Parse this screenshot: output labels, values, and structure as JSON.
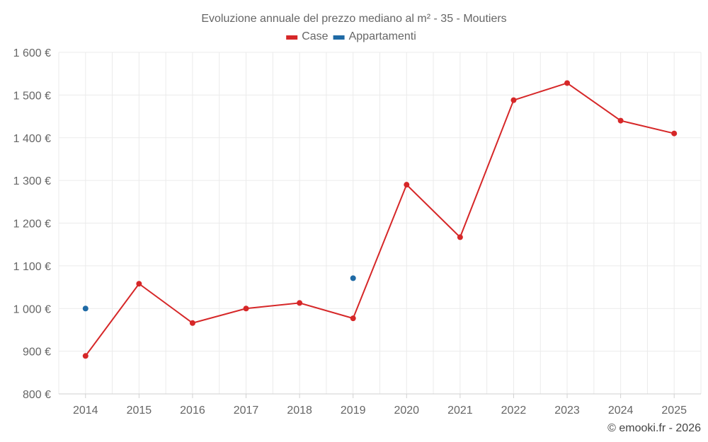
{
  "chart_data": {
    "type": "line",
    "title": "Evoluzione annuale del prezzo mediano al m² - 35 - Moutiers",
    "categories": [
      "2014",
      "2015",
      "2016",
      "2017",
      "2018",
      "2019",
      "2020",
      "2021",
      "2022",
      "2023",
      "2024",
      "2025"
    ],
    "ylim": [
      800,
      1600
    ],
    "yticks": [
      800,
      900,
      1000,
      1100,
      1200,
      1300,
      1400,
      1500,
      1600
    ],
    "ytick_labels": [
      "800 €",
      "900 €",
      "1 000 €",
      "1 100 €",
      "1 200 €",
      "1 300 €",
      "1 400 €",
      "1 500 €",
      "1 600 €"
    ],
    "grid": true,
    "legend_position": "top-center",
    "series": [
      {
        "name": "Case",
        "color": "#d62728",
        "connect": true,
        "values": [
          889,
          1058,
          966,
          1000,
          1013,
          977,
          1290,
          1167,
          1488,
          1528,
          1440,
          1410
        ]
      },
      {
        "name": "Appartamenti",
        "color": "#1f6aa5",
        "connect": false,
        "values": [
          1000,
          null,
          null,
          null,
          null,
          1071,
          null,
          null,
          null,
          null,
          null,
          null
        ]
      }
    ]
  },
  "credit": "© emooki.fr - 2026"
}
